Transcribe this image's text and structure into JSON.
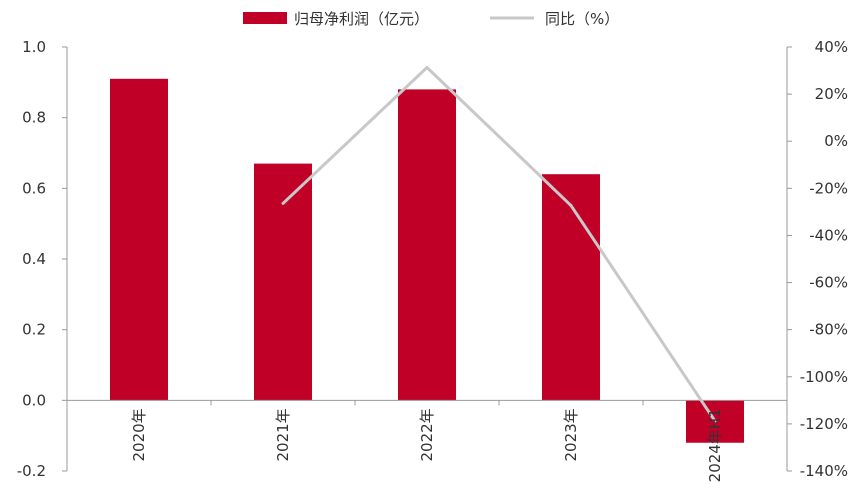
{
  "chart_data": {
    "type": "bar",
    "categories": [
      "2020年",
      "2021年",
      "2022年",
      "2023年",
      "2024年H1"
    ],
    "series": [
      {
        "name": "归母净利润（亿元）",
        "type": "bar",
        "axis": "left",
        "color": "#C00026",
        "values": [
          0.91,
          0.67,
          0.88,
          0.64,
          -0.12
        ]
      },
      {
        "name": "同比（%）",
        "type": "line",
        "axis": "right",
        "color": "#C8C8C8",
        "values": [
          null,
          -26.4,
          31.3,
          -27.3,
          -118.8
        ]
      }
    ],
    "y_left": {
      "min": -0.2,
      "max": 1.0,
      "ticks": [
        -0.2,
        0.0,
        0.2,
        0.4,
        0.6,
        0.8,
        1.0
      ],
      "tick_labels": [
        "-0.2",
        "0.0",
        "0.2",
        "0.4",
        "0.6",
        "0.8",
        "1.0"
      ]
    },
    "y_right": {
      "min": -140,
      "max": 40,
      "ticks": [
        -140,
        -120,
        -100,
        -80,
        -60,
        -40,
        -20,
        0,
        20,
        40
      ],
      "tick_labels": [
        "-140%",
        "-120%",
        "-100%",
        "-80%",
        "-60%",
        "-40%",
        "-20%",
        "0%",
        "20%",
        "40%"
      ]
    },
    "grid": false,
    "legend_position": "top"
  }
}
